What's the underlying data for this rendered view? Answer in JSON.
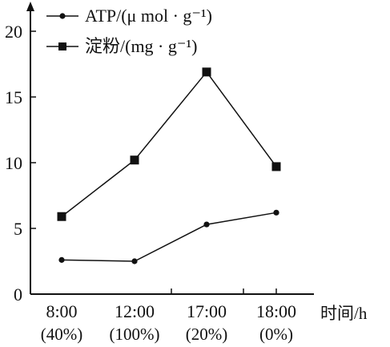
{
  "chart_data": {
    "type": "line",
    "categories": [
      "8:00",
      "12:00",
      "17:00",
      "18:00"
    ],
    "category_sublabels": [
      "(40%)",
      "(100%)",
      "(20%)",
      "(0%)"
    ],
    "xlabel": "时间/h",
    "ylabel": "",
    "ylim": [
      0,
      22
    ],
    "yticks": [
      0,
      5,
      10,
      15,
      20
    ],
    "grid": false,
    "legend_position": "top",
    "series": [
      {
        "name": "ATP/(μ mol · g⁻¹)",
        "values": [
          2.6,
          2.5,
          5.3,
          6.2
        ],
        "marker": "circle",
        "color": "#111111"
      },
      {
        "name": "淀粉/(mg · g⁻¹)",
        "values": [
          5.9,
          10.2,
          16.9,
          9.7
        ],
        "marker": "square",
        "color": "#111111"
      }
    ]
  }
}
